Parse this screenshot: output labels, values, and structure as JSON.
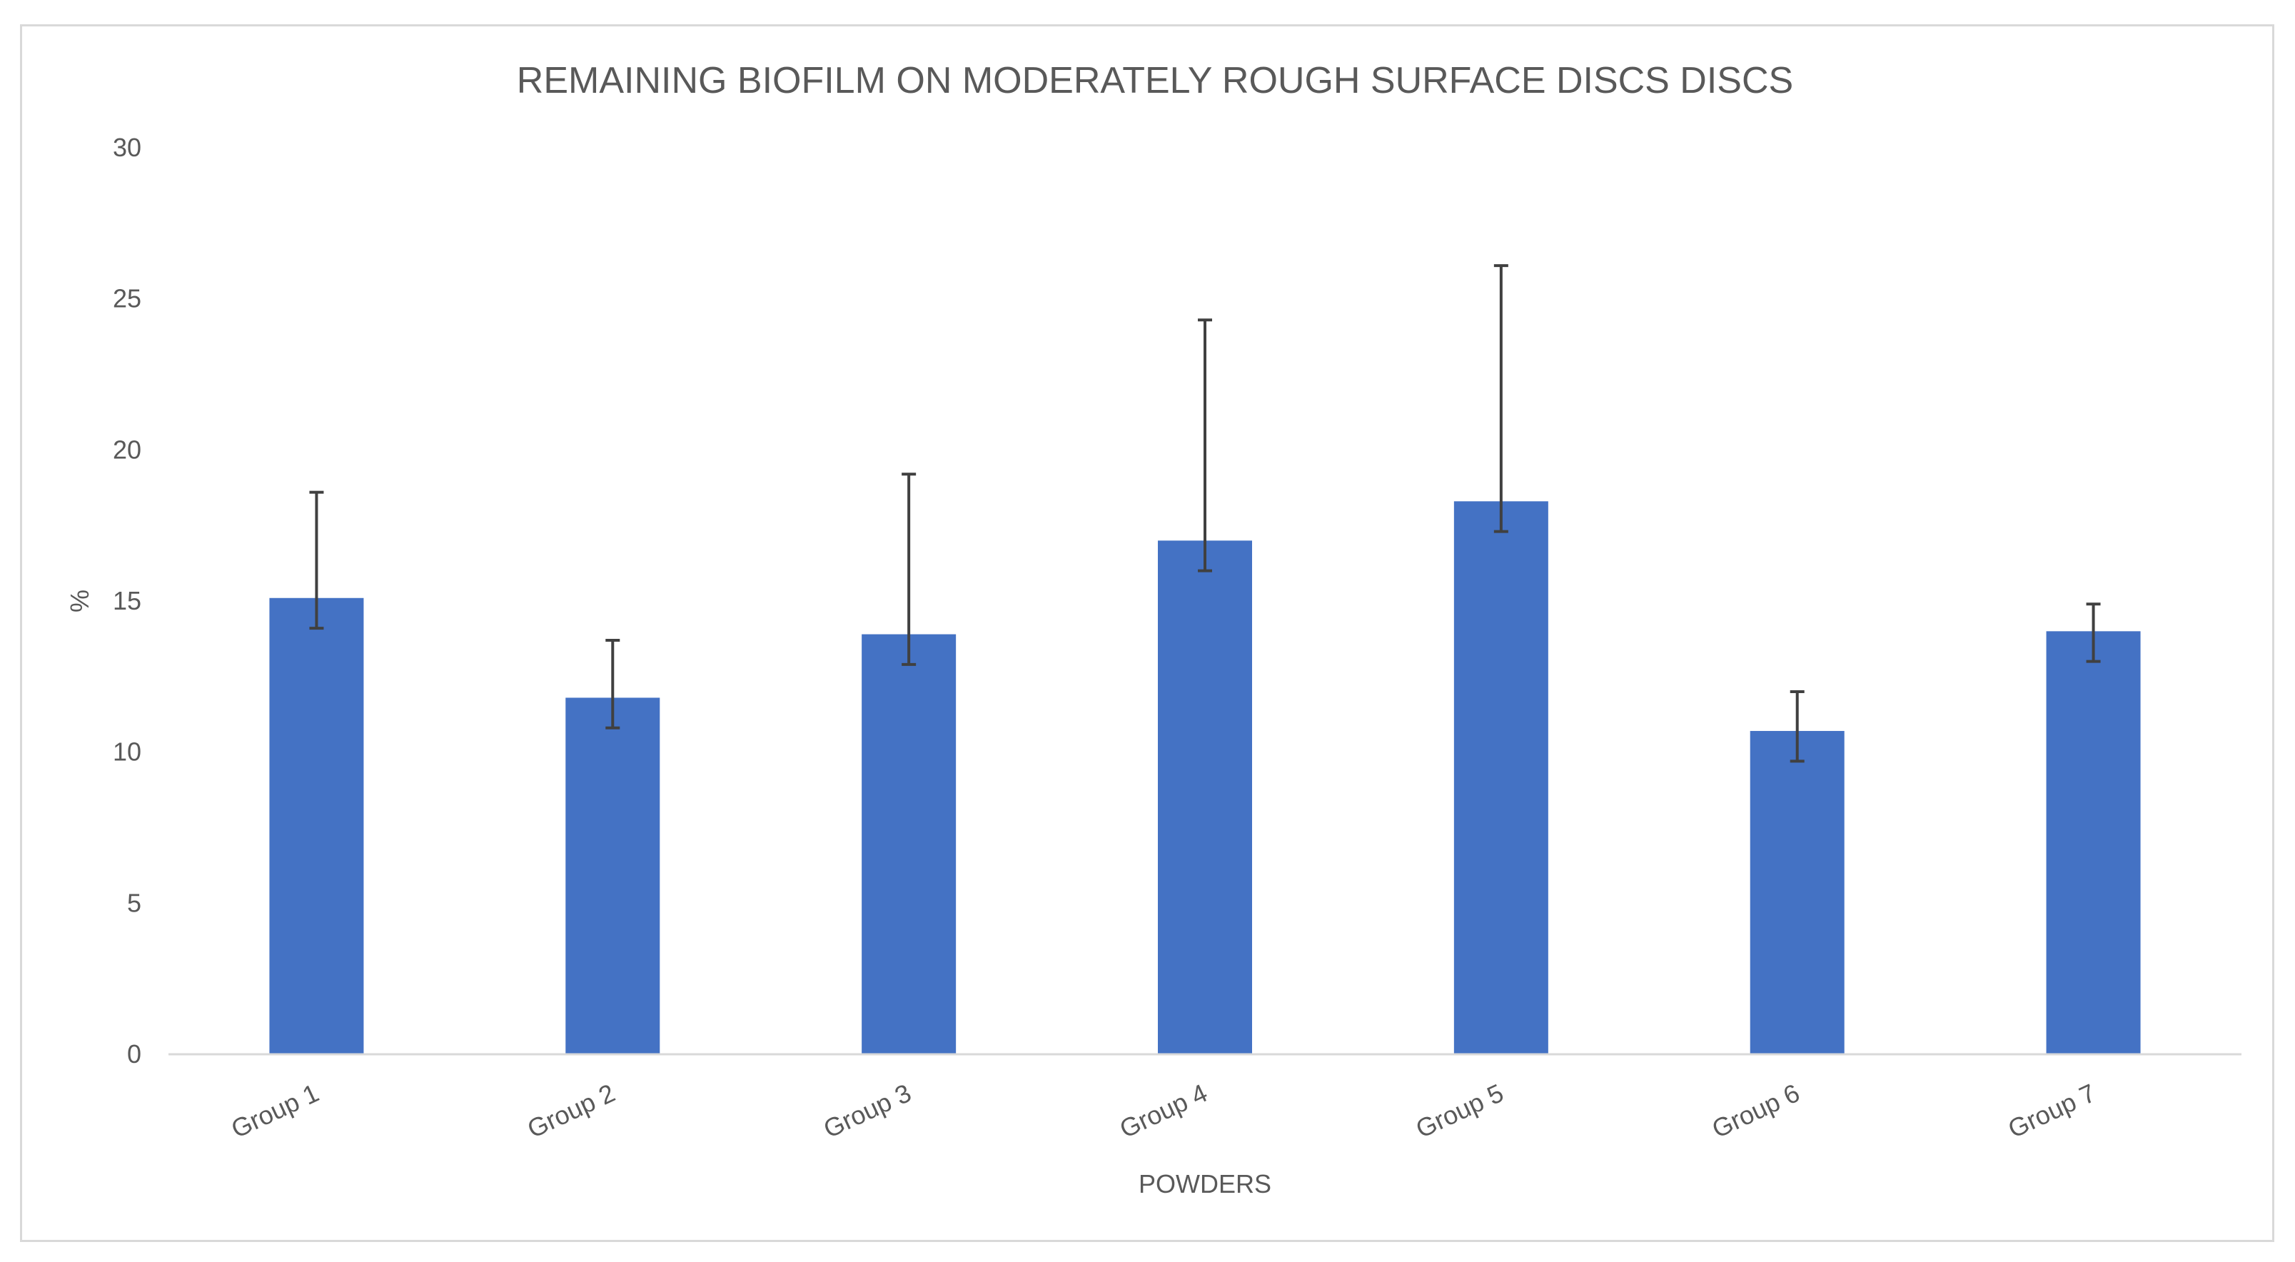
{
  "chart_data": {
    "type": "bar",
    "title": "REMAINING BIOFILM ON MODERATELY ROUGH SURFACE DISCS DISCS",
    "xlabel": "POWDERS",
    "ylabel": "%",
    "categories": [
      "Group 1",
      "Group 2",
      "Group 3",
      "Group 4",
      "Group 5",
      "Group 6",
      "Group 7"
    ],
    "values": [
      15.1,
      11.8,
      13.9,
      17.0,
      18.3,
      10.7,
      14.0
    ],
    "error_upper": [
      3.5,
      1.9,
      5.3,
      7.3,
      7.8,
      1.3,
      0.9
    ],
    "error_lower": [
      1.0,
      1.0,
      1.0,
      1.0,
      1.0,
      1.0,
      1.0
    ],
    "ylim": [
      0,
      30
    ],
    "yticks": [
      0,
      5,
      10,
      15,
      20,
      25,
      30
    ],
    "grid": false,
    "legend": "none",
    "colors": {
      "bar": "#4472c4",
      "error_bar": "#404040",
      "axis_line": "#d9d9d9",
      "text": "#595959"
    }
  }
}
